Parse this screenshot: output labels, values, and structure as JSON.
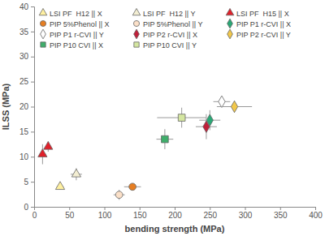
{
  "chart_data": {
    "type": "scatter",
    "x_label": "bending strength (MPa)",
    "y_label": "ILSS (MPa)",
    "xlim": [
      0,
      400
    ],
    "xticks": [
      0,
      50,
      100,
      150,
      200,
      250,
      300,
      350,
      400
    ],
    "ylim": [
      0,
      40
    ],
    "yticks": [
      0,
      5,
      10,
      15,
      20,
      25,
      30,
      35,
      40
    ],
    "grid": false,
    "legend": "top",
    "series": [
      {
        "name": "LSI PF  H12 || X",
        "color": "#fff0a0",
        "marker": "triangle",
        "x": [
          37
        ],
        "values": [
          4
        ],
        "x_error": [
          5
        ],
        "y_error": [
          0.5
        ]
      },
      {
        "name": "LSI PF  H12 || Y",
        "color": "#f3eed2",
        "marker": "triangle",
        "x": [
          60
        ],
        "values": [
          6.5
        ],
        "x_error": [
          8
        ],
        "y_error": [
          1.2
        ]
      },
      {
        "name": "LSI PF  H15 || X",
        "color": "#e0202a",
        "marker": "triangle",
        "x": [
          12,
          20
        ],
        "values": [
          10.5,
          12
        ],
        "x_error": [
          5,
          2
        ],
        "y_error": [
          2,
          1
        ]
      },
      {
        "name": "PIP 5%Phenol || X",
        "color": "#e67e22",
        "marker": "circle",
        "x": [
          140
        ],
        "values": [
          4
        ],
        "x_error": [
          12
        ],
        "y_error": [
          0.5
        ]
      },
      {
        "name": "PIP 5%Phenol || Y",
        "color": "#fbe0c8",
        "marker": "circle",
        "x": [
          121
        ],
        "values": [
          2.4
        ],
        "x_error": [
          8
        ],
        "y_error": [
          1
        ]
      },
      {
        "name": "PIP P1 r-CVI || X",
        "color": "#2aa876",
        "marker": "diamond",
        "x": [
          250
        ],
        "values": [
          17.3
        ],
        "x_error": [
          15
        ],
        "y_error": [
          2
        ]
      },
      {
        "name": "PIP P1 r-CVI || Y",
        "color": "#ffffff",
        "marker": "diamond",
        "x": [
          267
        ],
        "values": [
          21
        ],
        "x_error": [
          12
        ],
        "y_error": [
          1
        ]
      },
      {
        "name": "PIP P2 r-CVI || X",
        "color": "#c0203a",
        "marker": "diamond",
        "x": [
          245
        ],
        "values": [
          16
        ],
        "x_error": [
          15
        ],
        "y_error": [
          2.5
        ]
      },
      {
        "name": "PIP P2 r-CVI || Y",
        "color": "#f2c84b",
        "marker": "diamond",
        "x": [
          285
        ],
        "values": [
          20
        ],
        "x_error": [
          25
        ],
        "y_error": [
          1.2
        ]
      },
      {
        "name": "PIP P10 CVI || X",
        "color": "#3fae6b",
        "marker": "square",
        "x": [
          186
        ],
        "values": [
          13.5
        ],
        "x_error": [
          12
        ],
        "y_error": [
          2
        ]
      },
      {
        "name": "PIP P10 CVI || Y",
        "color": "#d4e6a0",
        "marker": "square",
        "x": [
          210
        ],
        "values": [
          17.8
        ],
        "x_error": [
          35
        ],
        "y_error": [
          2
        ]
      }
    ]
  }
}
